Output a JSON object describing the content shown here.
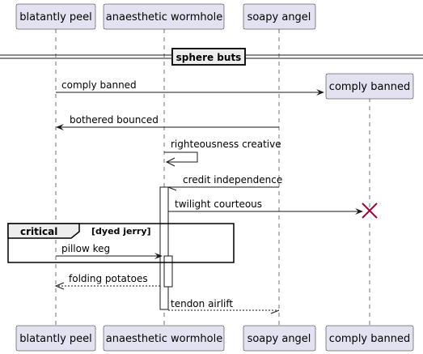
{
  "participants": {
    "p1": "blatantly peel",
    "p2": "anaesthetic wormhole",
    "p3": "soapy angel",
    "p4": "comply banned"
  },
  "divider": "sphere buts",
  "messages": {
    "m1": "comply banned",
    "m2": "bothered bounced",
    "m3": "righteousness creative",
    "m4": "credit independence",
    "m5": "twilight courteous",
    "m6": "pillow keg",
    "m7": "folding potatoes",
    "m8": "tendon airlift"
  },
  "fragment": {
    "kind": "critical",
    "condition": "[dyed jerry]"
  },
  "colors": {
    "participant_fill": "#e2e2f0",
    "destroy_mark": "#a80036"
  }
}
